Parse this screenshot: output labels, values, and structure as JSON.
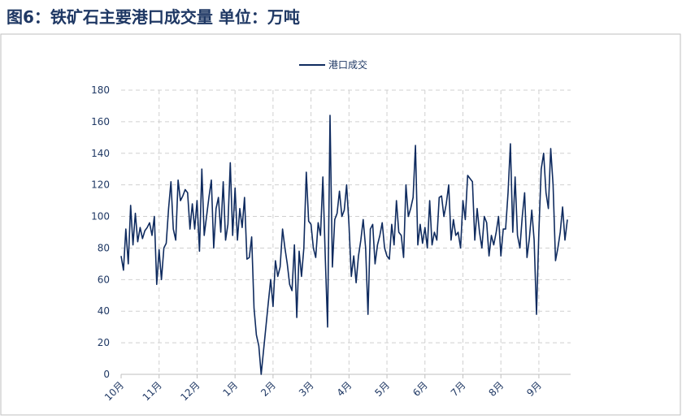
{
  "chart_data": {
    "type": "line",
    "title": "图6：铁矿石主要港口成交量   单位：万吨",
    "categories": [
      "10月",
      null,
      null,
      null,
      null,
      null,
      null,
      null,
      null,
      null,
      null,
      null,
      null,
      null,
      null,
      null,
      "11月",
      null,
      null,
      null,
      null,
      null,
      null,
      null,
      null,
      null,
      null,
      null,
      null,
      null,
      null,
      null,
      "12月",
      null,
      null,
      null,
      null,
      null,
      null,
      null,
      null,
      null,
      null,
      null,
      null,
      null,
      null,
      null,
      "1月",
      null,
      null,
      null,
      null,
      null,
      null,
      null,
      null,
      null,
      null,
      null,
      null,
      null,
      null,
      null,
      "2月",
      null,
      null,
      null,
      null,
      null,
      null,
      null,
      null,
      null,
      null,
      null,
      null,
      null,
      null,
      null,
      "3月",
      null,
      null,
      null,
      null,
      null,
      null,
      null,
      null,
      null,
      null,
      null,
      null,
      null,
      null,
      null,
      "4月",
      null,
      null,
      null,
      null,
      null,
      null,
      null,
      null,
      null,
      null,
      null,
      null,
      null,
      null,
      null,
      "5月",
      null,
      null,
      null,
      null,
      null,
      null,
      null,
      null,
      null,
      null,
      null,
      null,
      null,
      null,
      null,
      "6月",
      null,
      null,
      null,
      null,
      null,
      null,
      null,
      null,
      null,
      null,
      null,
      null,
      null,
      null,
      null,
      "7月",
      null,
      null,
      null,
      null,
      null,
      null,
      null,
      null,
      null,
      null,
      null,
      null,
      null,
      null,
      null,
      "8月",
      null,
      null,
      null,
      null,
      null,
      null,
      null,
      null,
      null,
      null,
      null,
      null,
      null,
      null,
      null,
      "9月",
      null,
      null,
      null,
      null,
      null,
      null,
      null,
      null,
      null,
      null,
      null,
      null
    ],
    "series": [
      {
        "name": "港口成交",
        "color": "#0f2b5f",
        "values": [
          75,
          66,
          92,
          70,
          107,
          82,
          102,
          84,
          93,
          86,
          91,
          93,
          96,
          88,
          100,
          57,
          79,
          60,
          80,
          83,
          105,
          122,
          92,
          85,
          123,
          110,
          113,
          117,
          115,
          92,
          108,
          92,
          110,
          78,
          130,
          88,
          100,
          112,
          123,
          80,
          105,
          112,
          90,
          122,
          85,
          95,
          134,
          88,
          118,
          85,
          105,
          93,
          112,
          73,
          74,
          87,
          42,
          25,
          18,
          0,
          15,
          30,
          45,
          60,
          43,
          72,
          62,
          68,
          92,
          80,
          70,
          57,
          53,
          82,
          36,
          78,
          62,
          80,
          128,
          97,
          95,
          80,
          74,
          96,
          88,
          125,
          75,
          30,
          164,
          68,
          98,
          102,
          116,
          100,
          104,
          120,
          95,
          62,
          75,
          58,
          75,
          85,
          98,
          80,
          38,
          92,
          95,
          70,
          82,
          88,
          96,
          80,
          75,
          73,
          95,
          82,
          110,
          90,
          88,
          74,
          120,
          100,
          105,
          112,
          145,
          82,
          95,
          83,
          93,
          80,
          110,
          82,
          90,
          85,
          112,
          113,
          100,
          108,
          120,
          85,
          98,
          88,
          90,
          80,
          110,
          98,
          126,
          124,
          122,
          85,
          105,
          90,
          80,
          100,
          96,
          75,
          88,
          82,
          90,
          100,
          75,
          92,
          92,
          115,
          146,
          90,
          125,
          88,
          80,
          100,
          115,
          74,
          86,
          104,
          85,
          38,
          90,
          130,
          140,
          115,
          105,
          143,
          120,
          72,
          80,
          90,
          106,
          85,
          98
        ]
      }
    ],
    "ylim": [
      0,
      180
    ],
    "yticks": [
      0,
      20,
      40,
      60,
      80,
      100,
      120,
      140,
      160,
      180
    ],
    "grid": true
  }
}
